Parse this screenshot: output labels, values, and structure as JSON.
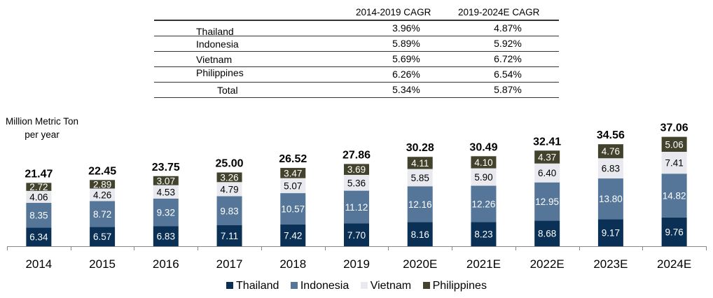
{
  "table": {
    "headers": [
      "",
      "2014-2019 CAGR",
      "2019-2024E CAGR"
    ],
    "rows": [
      {
        "label": "Thailand",
        "cagr_2014_2019": "3.96%",
        "cagr_2019_2024e": "4.87%"
      },
      {
        "label": "Indonesia",
        "cagr_2014_2019": "5.89%",
        "cagr_2019_2024e": "5.92%"
      },
      {
        "label": "Vietnam",
        "cagr_2014_2019": "5.69%",
        "cagr_2019_2024e": "6.72%"
      },
      {
        "label": "Philippines",
        "cagr_2014_2019": "6.26%",
        "cagr_2019_2024e": "6.54%"
      },
      {
        "label": "Total",
        "cagr_2014_2019": "5.34%",
        "cagr_2019_2024e": "5.87%"
      }
    ]
  },
  "chart_data": {
    "type": "bar",
    "stacked": true,
    "ylabel": "Million Metric Ton per year",
    "ylabel_lines": [
      "Million Metric Ton",
      "per year"
    ],
    "categories": [
      "2014",
      "2015",
      "2016",
      "2017",
      "2018",
      "2019",
      "2020E",
      "2021E",
      "2022E",
      "2023E",
      "2024E"
    ],
    "series": [
      {
        "name": "Thailand",
        "color": "#0a3055",
        "label_color": "#ffffff",
        "values": [
          6.34,
          6.57,
          6.83,
          7.11,
          7.42,
          7.7,
          8.16,
          8.23,
          8.68,
          9.17,
          9.76
        ]
      },
      {
        "name": "Indonesia",
        "color": "#557699",
        "label_color": "#ffffff",
        "values": [
          8.35,
          8.72,
          9.32,
          9.83,
          10.57,
          11.12,
          12.16,
          12.26,
          12.95,
          13.8,
          14.82
        ]
      },
      {
        "name": "Vietnam",
        "color": "#e8eaef",
        "label_color": "#000000",
        "values": [
          4.06,
          4.26,
          4.53,
          4.79,
          5.07,
          5.36,
          5.85,
          5.9,
          6.4,
          6.83,
          7.41
        ]
      },
      {
        "name": "Philippines",
        "color": "#43432d",
        "label_color": "#ffffff",
        "values": [
          2.72,
          2.89,
          3.07,
          3.26,
          3.47,
          3.69,
          4.11,
          4.1,
          4.37,
          4.76,
          5.06
        ]
      }
    ],
    "totals": [
      "21.47",
      "22.45",
      "23.75",
      "25.00",
      "26.52",
      "27.86",
      "30.28",
      "30.49",
      "32.41",
      "34.56",
      "37.06"
    ],
    "value_labels": [
      [
        "6.34",
        "6.57",
        "6.83",
        "7.11",
        "7.42",
        "7.70",
        "8.16",
        "8.23",
        "8.68",
        "9.17",
        "9.76"
      ],
      [
        "8.35",
        "8.72",
        "9.32",
        "9.83",
        "10.57",
        "11.12",
        "12.16",
        "12.26",
        "12.95",
        "13.80",
        "14.82"
      ],
      [
        "4.06",
        "4.26",
        "4.53",
        "4.79",
        "5.07",
        "5.36",
        "5.85",
        "5.90",
        "6.40",
        "6.83",
        "7.41"
      ],
      [
        "2.72",
        "2.89",
        "3.07",
        "3.26",
        "3.47",
        "3.69",
        "4.11",
        "4.10",
        "4.37",
        "4.76",
        "5.06"
      ]
    ],
    "legend_position": "bottom",
    "grid": false
  }
}
